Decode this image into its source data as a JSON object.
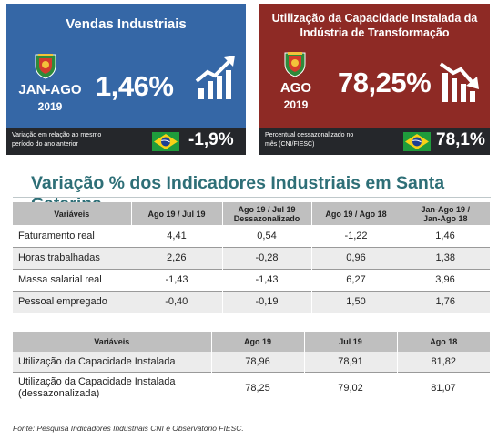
{
  "card_sales": {
    "title": "Vendas Industriais",
    "period_line1": "JAN-AGO",
    "period_line2": "2019",
    "value": "1,46%",
    "foot_note_line1": "Variação em relação ao mesmo",
    "foot_note_line2": "período do ano anterior",
    "national_value": "-1,9%",
    "trend": "up",
    "color": "#3567a6"
  },
  "card_capacity": {
    "title_line1": "Utilização da Capacidade Instalada da",
    "title_line2": "Indústria de Transformação",
    "period_line1": "AGO",
    "period_line2": "2019",
    "value": "78,25%",
    "foot_note_line1": "Percentual dessazonalizado no",
    "foot_note_line2": "mês (CNI/FIESC)",
    "national_value": "78,1%",
    "trend": "down",
    "color": "#8e2a25"
  },
  "section": {
    "title": "Variação % dos Indicadores Industriais em Santa Catarina"
  },
  "indicators_table": {
    "headers": [
      {
        "l1": "Variáveis",
        "l2": ""
      },
      {
        "l1": "Ago 19 / Jul 19",
        "l2": ""
      },
      {
        "l1": "Ago 19 / Jul 19",
        "l2": "Dessazonalizado"
      },
      {
        "l1": "Ago 19 / Ago 18",
        "l2": ""
      },
      {
        "l1": "Jan-Ago 19 /",
        "l2": "Jan-Ago 18"
      }
    ],
    "rows": [
      {
        "label": "Faturamento real",
        "values": [
          "4,41",
          "0,54",
          "-1,22",
          "1,46"
        ]
      },
      {
        "label": "Horas trabalhadas",
        "values": [
          "2,26",
          "-0,28",
          "0,96",
          "1,38"
        ]
      },
      {
        "label": "Massa salarial real",
        "values": [
          "-1,43",
          "-1,43",
          "6,27",
          "3,96"
        ]
      },
      {
        "label": "Pessoal empregado",
        "values": [
          "-0,40",
          "-0,19",
          "1,50",
          "1,76"
        ]
      }
    ]
  },
  "capacity_table": {
    "headers": [
      "Variáveis",
      "Ago 19",
      "Jul 19",
      "Ago 18"
    ],
    "rows": [
      {
        "label_l1": "Utilização da Capacidade Instalada",
        "label_l2": "",
        "values": [
          "78,96",
          "78,91",
          "81,82"
        ]
      },
      {
        "label_l1": "Utilização da Capacidade Instalada",
        "label_l2": "(dessazonalizada)",
        "values": [
          "78,25",
          "79,02",
          "81,07"
        ]
      }
    ]
  },
  "source": "Fonte: Pesquisa Indicadores Industriais CNI e Observatório FIESC.",
  "icons": [
    "santa-catarina-crest-icon",
    "trend-up-icon",
    "trend-down-icon",
    "brazil-flag-icon"
  ]
}
